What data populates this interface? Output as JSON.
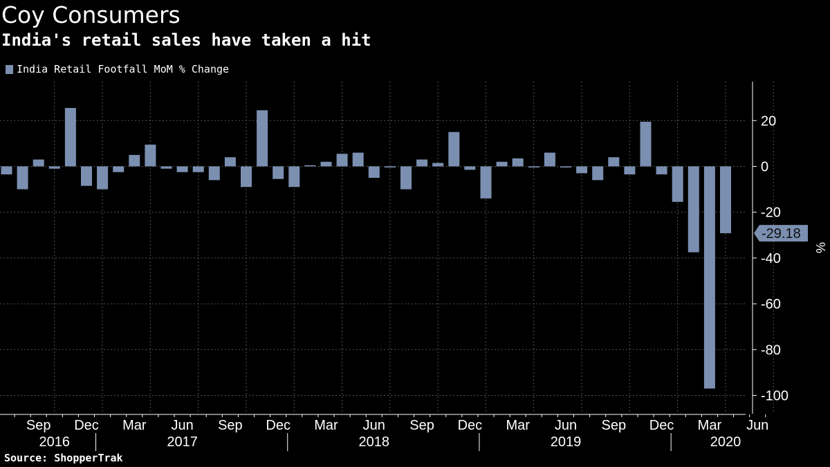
{
  "header": {
    "title": "Coy Consumers",
    "subtitle": "India's retail sales have taken a hit"
  },
  "legend": {
    "label": "India Retail Footfall MoM % Change"
  },
  "footer": {
    "source": "Source: ShopperTrak"
  },
  "colors": {
    "background": "#000000",
    "bar": "#7b8fb0",
    "grid": "#555555",
    "text": "#ffffff",
    "value_tag_bg": "#7b8fb0",
    "value_tag_text": "#0d0d0d"
  },
  "chart_data": {
    "type": "bar",
    "title": "Coy Consumers",
    "subtitle": "India's retail sales have taken a hit",
    "source": "Source: ShopperTrak",
    "y_axis_unit": "%",
    "y_axis_side": "right",
    "grid": true,
    "legend_placement": "top-left",
    "ylim": [
      -108,
      37
    ],
    "y_ticks": [
      20,
      0,
      -20,
      -40,
      -60,
      -80,
      -100
    ],
    "y_tick_labels": [
      "20",
      "0",
      "-20",
      "-40",
      "-60",
      "-80",
      "-100"
    ],
    "x_month_labels": [
      {
        "label": "Sep",
        "month": "2016-09"
      },
      {
        "label": "Dec",
        "month": "2016-12"
      },
      {
        "label": "Mar",
        "month": "2017-03"
      },
      {
        "label": "Jun",
        "month": "2017-06"
      },
      {
        "label": "Sep",
        "month": "2017-09"
      },
      {
        "label": "Dec",
        "month": "2017-12"
      },
      {
        "label": "Mar",
        "month": "2018-03"
      },
      {
        "label": "Jun",
        "month": "2018-06"
      },
      {
        "label": "Sep",
        "month": "2018-09"
      },
      {
        "label": "Dec",
        "month": "2018-12"
      },
      {
        "label": "Mar",
        "month": "2019-03"
      },
      {
        "label": "Jun",
        "month": "2019-06"
      },
      {
        "label": "Sep",
        "month": "2019-09"
      },
      {
        "label": "Dec",
        "month": "2019-12"
      },
      {
        "label": "Mar",
        "month": "2020-03"
      },
      {
        "label": "Jun",
        "month": "2020-06"
      }
    ],
    "x_year_labels": [
      {
        "label": "2016",
        "month": "2016-10"
      },
      {
        "label": "2017",
        "month": "2017-06"
      },
      {
        "label": "2018",
        "month": "2018-06"
      },
      {
        "label": "2019",
        "month": "2019-06"
      },
      {
        "label": "2020",
        "month": "2020-04"
      }
    ],
    "year_boundaries": [
      "2016-12",
      "2017-12",
      "2018-12",
      "2019-12"
    ],
    "last_value_label": "-29.18",
    "series": [
      {
        "name": "India Retail Footfall MoM % Change",
        "x": [
          "2016-07",
          "2016-08",
          "2016-09",
          "2016-10",
          "2016-11",
          "2016-12",
          "2017-01",
          "2017-02",
          "2017-03",
          "2017-04",
          "2017-05",
          "2017-06",
          "2017-07",
          "2017-08",
          "2017-09",
          "2017-10",
          "2017-11",
          "2017-12",
          "2018-01",
          "2018-02",
          "2018-03",
          "2018-04",
          "2018-05",
          "2018-06",
          "2018-07",
          "2018-08",
          "2018-09",
          "2018-10",
          "2018-11",
          "2018-12",
          "2019-01",
          "2019-02",
          "2019-03",
          "2019-04",
          "2019-05",
          "2019-06",
          "2019-07",
          "2019-08",
          "2019-09",
          "2019-10",
          "2019-11",
          "2019-12",
          "2020-01",
          "2020-02",
          "2020-03",
          "2020-04",
          "2020-05",
          "2020-06"
        ],
        "values": [
          -3.5,
          -10,
          3,
          -1,
          25.5,
          -8.5,
          -10,
          -2.5,
          5,
          9.5,
          -1,
          -2.5,
          -2.5,
          -6,
          4,
          -9,
          24.5,
          -5.5,
          -9,
          0.5,
          2,
          5.5,
          6,
          -5,
          -0.5,
          -10,
          3,
          1.5,
          15,
          -1.5,
          -14,
          2,
          3.5,
          -0.5,
          6,
          -0.5,
          -3,
          -6,
          4,
          -3.5,
          19.5,
          -3.5,
          -15.5,
          -37.5,
          -97,
          -29.18,
          0,
          0
        ]
      }
    ]
  }
}
